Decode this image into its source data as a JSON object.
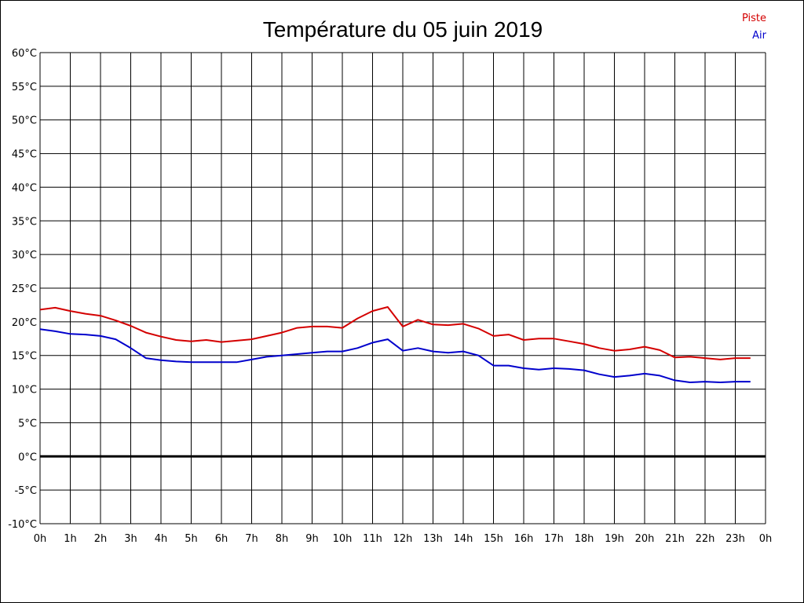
{
  "chart_data": {
    "type": "line",
    "title": "Température du 05 juin 2019",
    "x_tick_labels": [
      "0h",
      "1h",
      "2h",
      "3h",
      "4h",
      "5h",
      "6h",
      "7h",
      "8h",
      "9h",
      "10h",
      "11h",
      "12h",
      "13h",
      "14h",
      "15h",
      "16h",
      "17h",
      "18h",
      "19h",
      "20h",
      "21h",
      "22h",
      "23h",
      "0h"
    ],
    "y_tick_labels": [
      "60°C",
      "55°C",
      "50°C",
      "45°C",
      "40°C",
      "35°C",
      "30°C",
      "25°C",
      "20°C",
      "15°C",
      "10°C",
      "5°C",
      "0°C",
      "-5°C",
      "-10°C"
    ],
    "xlim": [
      0,
      24
    ],
    "ylim": [
      -10,
      60
    ],
    "grid": true,
    "legend_position": "top-right",
    "series": [
      {
        "name": "Piste",
        "color": "#d40000",
        "x": [
          0,
          0.5,
          1,
          1.5,
          2,
          2.5,
          3,
          3.5,
          4,
          4.5,
          5,
          5.5,
          6,
          6.5,
          7,
          7.5,
          8,
          8.5,
          9,
          9.5,
          10,
          10.5,
          11,
          11.5,
          12,
          12.5,
          13,
          13.5,
          14,
          14.5,
          15,
          15.5,
          16,
          16.5,
          17,
          17.5,
          18,
          18.5,
          19,
          19.5,
          20,
          20.5,
          21,
          21.5,
          22,
          22.5,
          23,
          23.5
        ],
        "values": [
          21.8,
          22.1,
          21.6,
          21.2,
          20.9,
          20.2,
          19.4,
          18.4,
          17.8,
          17.3,
          17.1,
          17.3,
          17.0,
          17.2,
          17.4,
          17.9,
          18.4,
          19.1,
          19.3,
          19.3,
          19.1,
          20.5,
          21.6,
          22.2,
          19.3,
          20.3,
          19.6,
          19.5,
          19.7,
          19.0,
          17.9,
          18.1,
          17.3,
          17.5,
          17.5,
          17.1,
          16.7,
          16.1,
          15.7,
          15.9,
          16.3,
          15.8,
          14.7,
          14.8,
          14.6,
          14.4,
          14.6,
          14.6
        ]
      },
      {
        "name": "Air",
        "color": "#0000cc",
        "x": [
          0,
          0.5,
          1,
          1.5,
          2,
          2.5,
          3,
          3.5,
          4,
          4.5,
          5,
          5.5,
          6,
          6.5,
          7,
          7.5,
          8,
          8.5,
          9,
          9.5,
          10,
          10.5,
          11,
          11.5,
          12,
          12.5,
          13,
          13.5,
          14,
          14.5,
          15,
          15.5,
          16,
          16.5,
          17,
          17.5,
          18,
          18.5,
          19,
          19.5,
          20,
          20.5,
          21,
          21.5,
          22,
          22.5,
          23,
          23.5
        ],
        "values": [
          18.9,
          18.6,
          18.2,
          18.1,
          17.9,
          17.4,
          16.1,
          14.6,
          14.3,
          14.1,
          14.0,
          14.0,
          14.0,
          14.0,
          14.4,
          14.8,
          15.0,
          15.2,
          15.4,
          15.6,
          15.6,
          16.1,
          16.9,
          17.4,
          15.7,
          16.1,
          15.6,
          15.4,
          15.6,
          15.0,
          13.5,
          13.5,
          13.1,
          12.9,
          13.1,
          13.0,
          12.8,
          12.2,
          11.8,
          12.0,
          12.3,
          12.0,
          11.3,
          11.0,
          11.1,
          11.0,
          11.1,
          11.1
        ]
      }
    ]
  }
}
